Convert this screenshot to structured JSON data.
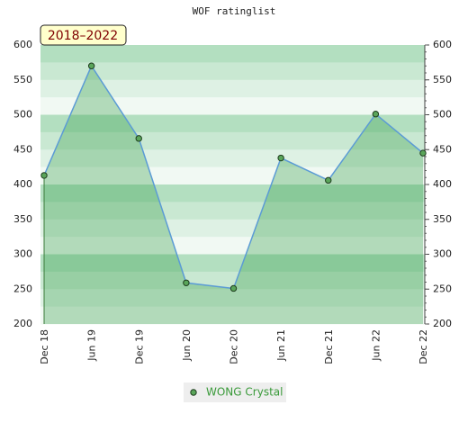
{
  "chart_data": {
    "type": "area-line",
    "title": "WOF ratinglist",
    "annotation": "2018–2022",
    "categories": [
      "Dec 18",
      "Jun 19",
      "Dec 19",
      "Jun 20",
      "Dec 20",
      "Jun 21",
      "Dec 21",
      "Jun 22",
      "Dec 22"
    ],
    "series": [
      {
        "name": "WONG Crystal",
        "color": "#5aa55a",
        "line_color": "#5b9bd5",
        "values": [
          413,
          570,
          466,
          259,
          251,
          438,
          406,
          501,
          445
        ]
      }
    ],
    "ylim": [
      200,
      600
    ],
    "yticks": [
      200,
      250,
      300,
      350,
      400,
      450,
      500,
      550,
      600
    ],
    "y2ticks_mirror": true,
    "grid": true
  }
}
